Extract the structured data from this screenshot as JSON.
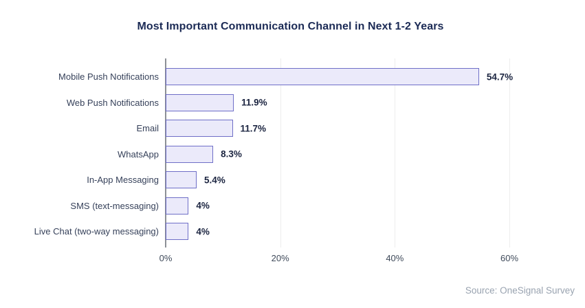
{
  "chart_data": {
    "type": "bar",
    "orientation": "horizontal",
    "title": "Most Important Communication Channel in Next 1-2 Years",
    "categories": [
      "Mobile Push Notifications",
      "Web Push Notifications",
      "Email",
      "WhatsApp",
      "In-App Messaging",
      "SMS (text-messaging)",
      "Live Chat (two-way messaging)"
    ],
    "values": [
      54.7,
      11.9,
      11.7,
      8.3,
      5.4,
      4,
      4
    ],
    "value_labels": [
      "54.7%",
      "11.9%",
      "11.7%",
      "8.3%",
      "5.4%",
      "4%",
      "4%"
    ],
    "xlabel": "",
    "ylabel": "",
    "xlim": [
      0,
      60
    ],
    "x_tick_values": [
      0,
      20,
      40,
      60
    ],
    "x_tick_labels": [
      "0%",
      "20%",
      "40%",
      "60%"
    ],
    "grid": true,
    "legend": "none",
    "bar_fill_color": "#EBEAFA",
    "bar_border_color": "#6E6EC7",
    "title_color": "#1B2A55",
    "gridline_color": "#EDEDED",
    "axis_line_color": "#8C9096"
  },
  "source": "Source: OneSignal Survey"
}
